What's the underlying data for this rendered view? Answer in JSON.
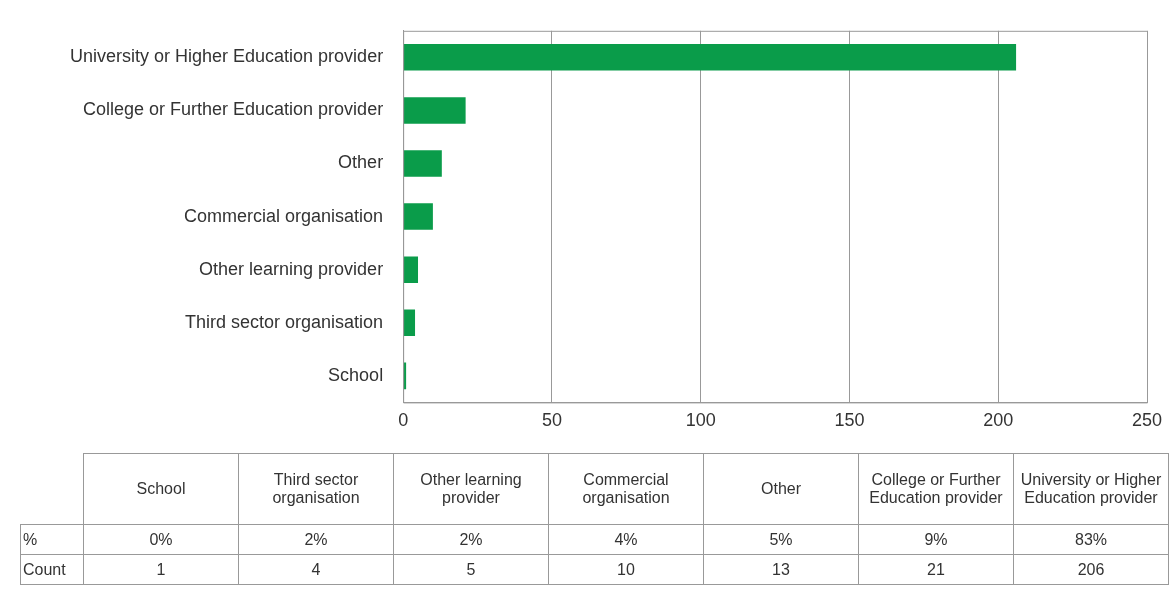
{
  "chart_data": {
    "type": "bar",
    "orientation": "horizontal",
    "categories": [
      "University or Higher Education provider",
      "College or Further Education provider",
      "Other",
      "Commercial organisation",
      "Other learning provider",
      "Third sector organisation",
      "School"
    ],
    "values": [
      206,
      21,
      13,
      10,
      5,
      4,
      1
    ],
    "color": "#0a9c4a",
    "xlim": [
      0,
      250
    ],
    "xticks": [
      0,
      50,
      100,
      150,
      200,
      250
    ],
    "grid": "x",
    "legend": false,
    "annotations": [
      "%",
      "0%",
      "2%",
      "2%",
      "4%",
      "5%",
      "9%",
      "83%",
      "Count",
      "1",
      "4",
      "5",
      "10",
      "13",
      "21",
      "206"
    ]
  }
}
